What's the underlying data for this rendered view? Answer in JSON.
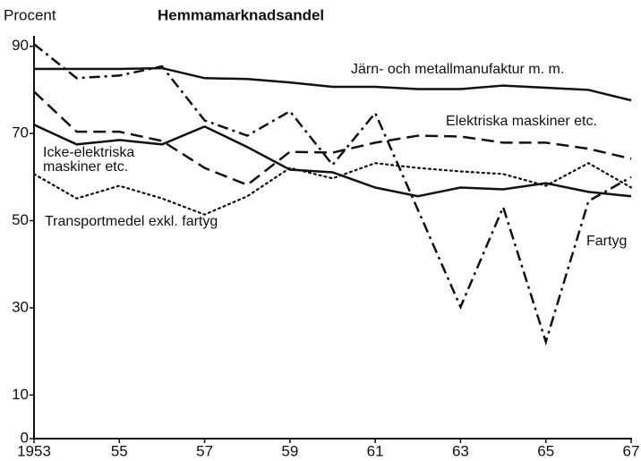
{
  "chart_data": {
    "type": "line",
    "title": "Hemmamarknadsandel",
    "y_label": "Procent",
    "x": [
      1953,
      1954,
      1955,
      1956,
      1957,
      1958,
      1959,
      1960,
      1961,
      1962,
      1963,
      1964,
      1965,
      1966,
      1967
    ],
    "xlim": [
      1953,
      1967
    ],
    "xticks": [
      {
        "value": 1953,
        "label": "1953"
      },
      {
        "value": 1955,
        "label": "55"
      },
      {
        "value": 1957,
        "label": "57"
      },
      {
        "value": 1959,
        "label": "59"
      },
      {
        "value": 1961,
        "label": "61"
      },
      {
        "value": 1963,
        "label": "63"
      },
      {
        "value": 1965,
        "label": "65"
      },
      {
        "value": 1967,
        "label": "67"
      }
    ],
    "ylim": [
      0,
      92
    ],
    "yticks": [
      0,
      10,
      30,
      50,
      70,
      90
    ],
    "grid": false,
    "series": [
      {
        "name": "Järn- och metallmanufaktur m. m.",
        "color": "#111111",
        "style": "solid",
        "values": [
          84.8,
          84.8,
          84.8,
          85,
          82.7,
          82.5,
          81.7,
          80.7,
          80.7,
          80.2,
          80.2,
          81,
          80.5,
          80,
          77.6
        ]
      },
      {
        "name": "Elektriska maskiner etc.",
        "color": "#111111",
        "style": "dashed",
        "values": [
          79.6,
          70.4,
          70.4,
          68.3,
          62.1,
          58.2,
          65.8,
          65.6,
          67.9,
          69.5,
          69.3,
          67.9,
          67.9,
          66.5,
          64.2
        ]
      },
      {
        "name": "Icke-elektriska maskiner etc.",
        "color": "#111111",
        "style": "solid",
        "values": [
          72,
          67.5,
          68.5,
          67.5,
          71.6,
          66.9,
          61.7,
          61.1,
          57.6,
          55.6,
          57.6,
          57.2,
          58.6,
          56.6,
          55.6
        ]
      },
      {
        "name": "Transportmedel exkl. fartyg",
        "color": "#111111",
        "style": "dotted",
        "values": [
          60.7,
          55.1,
          58,
          55.1,
          51.4,
          55.6,
          62.1,
          59.7,
          63.2,
          62.1,
          61.3,
          60.7,
          58,
          63.2,
          57.6
        ]
      },
      {
        "name": "Fartyg",
        "color": "#111111",
        "style": "dashdot",
        "values": [
          90.5,
          82.7,
          83.3,
          85.4,
          73,
          69.5,
          75.1,
          62.8,
          74.7,
          52.5,
          30.2,
          53.1,
          22.2,
          54.5,
          60
        ]
      }
    ]
  }
}
